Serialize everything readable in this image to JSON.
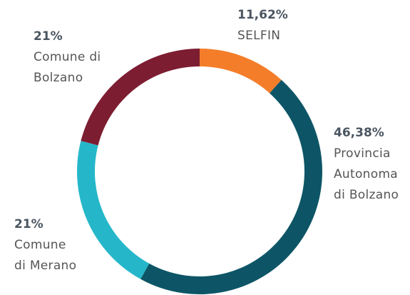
{
  "chart_data": {
    "type": "donut",
    "categories": [
      "SELFIN",
      "Provincia\nAutonoma\ndi Bolzano",
      "Comune\ndi Merano",
      "Comune di\nBolzano"
    ],
    "values": [
      11.62,
      46.38,
      21,
      21
    ],
    "value_labels": [
      "11,62%",
      "46,38%",
      "21%",
      "21%"
    ],
    "colors": [
      "#f47d2a",
      "#0d5566",
      "#25b7c9",
      "#7d1d32"
    ]
  }
}
